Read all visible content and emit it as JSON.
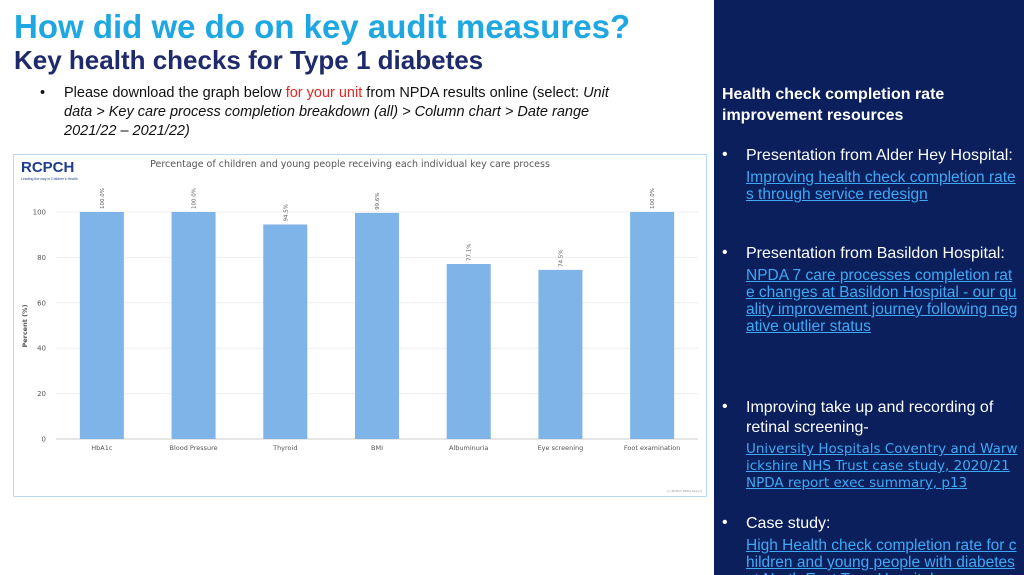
{
  "slide": {
    "title": "How did we do on key audit measures?",
    "subtitle": "Key health checks for Type 1 diabetes"
  },
  "instruction": {
    "bullet": "•",
    "part1": "Please download the graph below ",
    "highlight": "for your unit",
    "part2": " from NPDA results online (select: ",
    "italic": "Unit data > Key care process completion breakdown (all) > Column chart > Date range 2021/22 – 2021/22)"
  },
  "chart_logo": "RCPCH",
  "chart_logo_tagline": "Leading the way in Children's Health",
  "chart_footer": "(c) RCPCH NPDA Report",
  "chart_data": {
    "type": "bar",
    "title": "Percentage of children and young people receiving each individual key care process",
    "ylabel": "Percent (%)",
    "xlabel": "",
    "categories": [
      "HbA1c",
      "Blood Pressure",
      "Thyroid",
      "BMI",
      "Albuminuria",
      "Eye screening",
      "Foot examination"
    ],
    "values": [
      100.0,
      100.0,
      94.5,
      99.6,
      77.1,
      74.5,
      100.0
    ],
    "value_labels": [
      "100.0%",
      "100.0%",
      "94.5%",
      "99.6%",
      "77.1%",
      "74.5%",
      "100.0%"
    ],
    "ylim": [
      0,
      100
    ],
    "yticks": [
      0,
      20,
      40,
      60,
      80,
      100
    ],
    "grid": true,
    "bar_color": "#7fb4e9"
  },
  "panel": {
    "heading": "Health check completion rate improvement resources",
    "resources": [
      {
        "text": "Presentation from Alder Hey Hospital:",
        "link": "Improving health check completion rates through service redesign"
      },
      {
        "text": "Presentation from Basildon Hospital:",
        "link": "NPDA 7 care processes completion rate changes at Basildon Hospital - our quality improvement journey following negative outlier status"
      },
      {
        "text": "Improving take up and recording of retinal screening-",
        "link": "University Hospitals Coventry and Warwickshire NHS Trust case study, 2020/21 NPDA report exec summary, p13"
      },
      {
        "text": "Case study:",
        "link": "High Health check completion rate for children and young people with diabetes at North East Tees Hospital"
      }
    ]
  },
  "colors": {
    "title": "#1ea7e1",
    "subtitle": "#1f2a6b",
    "panel_bg": "#0a1f5c",
    "link": "#3fa9f5",
    "highlight": "#e8251e"
  }
}
